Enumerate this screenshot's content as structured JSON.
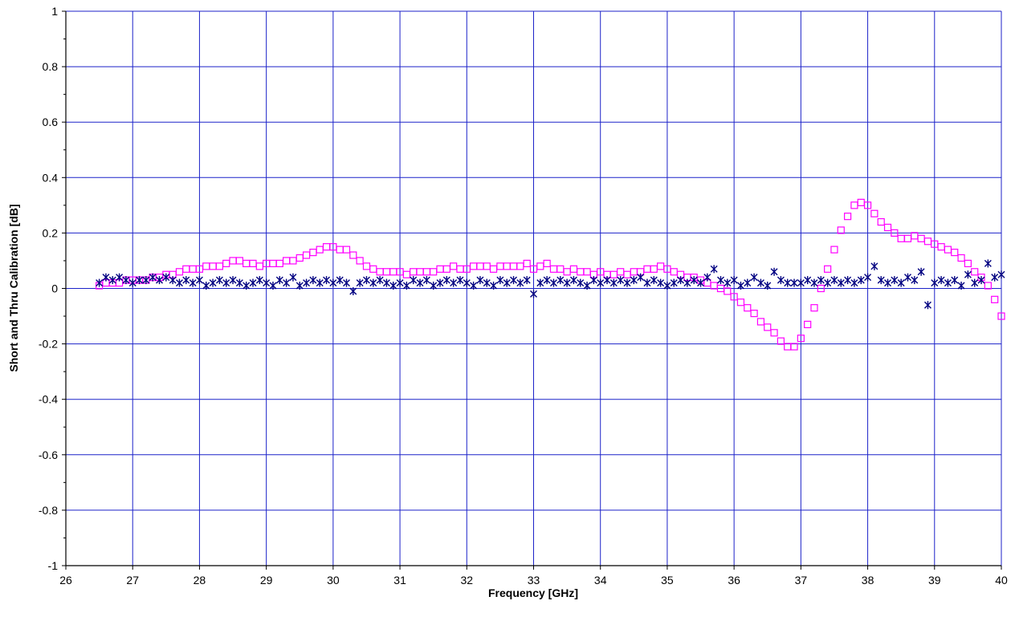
{
  "chart_data": {
    "type": "scatter",
    "title": "",
    "xlabel": "Frequency [GHz]",
    "ylabel": "Short and Thru Calibration [dB]",
    "xlim": [
      26,
      40
    ],
    "ylim": [
      -1,
      1
    ],
    "x_ticks": [
      26,
      27,
      28,
      29,
      30,
      31,
      32,
      33,
      34,
      35,
      36,
      37,
      38,
      39,
      40
    ],
    "x_tick_labels": [
      "26",
      "27",
      "28",
      "29",
      "30",
      "31",
      "32",
      "33",
      "34",
      "35",
      "36",
      "37",
      "38",
      "39",
      "40"
    ],
    "y_ticks": [
      -1,
      -0.8,
      -0.6,
      -0.4,
      -0.2,
      0,
      0.2,
      0.4,
      0.6,
      0.8,
      1
    ],
    "y_tick_labels": [
      "-1",
      "-0.8",
      "-0.6",
      "-0.4",
      "-0.2",
      "0",
      "0.2",
      "0.4",
      "0.6",
      "0.8",
      "1"
    ],
    "grid": true,
    "legend": "none",
    "series": [
      {
        "marker": "square",
        "color": "#ff00ff",
        "points": [
          [
            26.5,
            0.01
          ],
          [
            26.6,
            0.02
          ],
          [
            26.7,
            0.02
          ],
          [
            26.8,
            0.02
          ],
          [
            26.9,
            0.03
          ],
          [
            27.0,
            0.03
          ],
          [
            27.1,
            0.03
          ],
          [
            27.2,
            0.03
          ],
          [
            27.3,
            0.04
          ],
          [
            27.4,
            0.04
          ],
          [
            27.5,
            0.05
          ],
          [
            27.6,
            0.05
          ],
          [
            27.7,
            0.06
          ],
          [
            27.8,
            0.07
          ],
          [
            27.9,
            0.07
          ],
          [
            28.0,
            0.07
          ],
          [
            28.1,
            0.08
          ],
          [
            28.2,
            0.08
          ],
          [
            28.3,
            0.08
          ],
          [
            28.4,
            0.09
          ],
          [
            28.5,
            0.1
          ],
          [
            28.6,
            0.1
          ],
          [
            28.7,
            0.09
          ],
          [
            28.8,
            0.09
          ],
          [
            28.9,
            0.08
          ],
          [
            29.0,
            0.09
          ],
          [
            29.1,
            0.09
          ],
          [
            29.2,
            0.09
          ],
          [
            29.3,
            0.1
          ],
          [
            29.4,
            0.1
          ],
          [
            29.5,
            0.11
          ],
          [
            29.6,
            0.12
          ],
          [
            29.7,
            0.13
          ],
          [
            29.8,
            0.14
          ],
          [
            29.9,
            0.15
          ],
          [
            30.0,
            0.15
          ],
          [
            30.1,
            0.14
          ],
          [
            30.2,
            0.14
          ],
          [
            30.3,
            0.12
          ],
          [
            30.4,
            0.1
          ],
          [
            30.5,
            0.08
          ],
          [
            30.6,
            0.07
          ],
          [
            30.7,
            0.06
          ],
          [
            30.8,
            0.06
          ],
          [
            30.9,
            0.06
          ],
          [
            31.0,
            0.06
          ],
          [
            31.1,
            0.05
          ],
          [
            31.2,
            0.06
          ],
          [
            31.3,
            0.06
          ],
          [
            31.4,
            0.06
          ],
          [
            31.5,
            0.06
          ],
          [
            31.6,
            0.07
          ],
          [
            31.7,
            0.07
          ],
          [
            31.8,
            0.08
          ],
          [
            31.9,
            0.07
          ],
          [
            32.0,
            0.07
          ],
          [
            32.1,
            0.08
          ],
          [
            32.2,
            0.08
          ],
          [
            32.3,
            0.08
          ],
          [
            32.4,
            0.07
          ],
          [
            32.5,
            0.08
          ],
          [
            32.6,
            0.08
          ],
          [
            32.7,
            0.08
          ],
          [
            32.8,
            0.08
          ],
          [
            32.9,
            0.09
          ],
          [
            33.0,
            0.07
          ],
          [
            33.1,
            0.08
          ],
          [
            33.2,
            0.09
          ],
          [
            33.3,
            0.07
          ],
          [
            33.4,
            0.07
          ],
          [
            33.5,
            0.06
          ],
          [
            33.6,
            0.07
          ],
          [
            33.7,
            0.06
          ],
          [
            33.8,
            0.06
          ],
          [
            33.9,
            0.05
          ],
          [
            34.0,
            0.06
          ],
          [
            34.1,
            0.05
          ],
          [
            34.2,
            0.05
          ],
          [
            34.3,
            0.06
          ],
          [
            34.4,
            0.05
          ],
          [
            34.5,
            0.06
          ],
          [
            34.6,
            0.06
          ],
          [
            34.7,
            0.07
          ],
          [
            34.8,
            0.07
          ],
          [
            34.9,
            0.08
          ],
          [
            35.0,
            0.07
          ],
          [
            35.1,
            0.06
          ],
          [
            35.2,
            0.05
          ],
          [
            35.3,
            0.04
          ],
          [
            35.4,
            0.04
          ],
          [
            35.5,
            0.03
          ],
          [
            35.6,
            0.02
          ],
          [
            35.7,
            0.01
          ],
          [
            35.8,
            0.0
          ],
          [
            35.9,
            -0.01
          ],
          [
            36.0,
            -0.03
          ],
          [
            36.1,
            -0.05
          ],
          [
            36.2,
            -0.07
          ],
          [
            36.3,
            -0.09
          ],
          [
            36.4,
            -0.12
          ],
          [
            36.5,
            -0.14
          ],
          [
            36.6,
            -0.16
          ],
          [
            36.7,
            -0.19
          ],
          [
            36.8,
            -0.21
          ],
          [
            36.9,
            -0.21
          ],
          [
            37.0,
            -0.18
          ],
          [
            37.1,
            -0.13
          ],
          [
            37.2,
            -0.07
          ],
          [
            37.3,
            0.0
          ],
          [
            37.4,
            0.07
          ],
          [
            37.5,
            0.14
          ],
          [
            37.6,
            0.21
          ],
          [
            37.7,
            0.26
          ],
          [
            37.8,
            0.3
          ],
          [
            37.9,
            0.31
          ],
          [
            38.0,
            0.3
          ],
          [
            38.1,
            0.27
          ],
          [
            38.2,
            0.24
          ],
          [
            38.3,
            0.22
          ],
          [
            38.4,
            0.2
          ],
          [
            38.5,
            0.18
          ],
          [
            38.6,
            0.18
          ],
          [
            38.7,
            0.19
          ],
          [
            38.8,
            0.18
          ],
          [
            38.9,
            0.17
          ],
          [
            39.0,
            0.16
          ],
          [
            39.1,
            0.15
          ],
          [
            39.2,
            0.14
          ],
          [
            39.3,
            0.13
          ],
          [
            39.4,
            0.11
          ],
          [
            39.5,
            0.09
          ],
          [
            39.6,
            0.06
          ],
          [
            39.7,
            0.04
          ],
          [
            39.8,
            0.01
          ],
          [
            39.9,
            -0.04
          ],
          [
            40.0,
            -0.1
          ]
        ]
      },
      {
        "marker": "star",
        "color": "#000080",
        "points": [
          [
            26.5,
            0.02
          ],
          [
            26.6,
            0.04
          ],
          [
            26.7,
            0.03
          ],
          [
            26.8,
            0.04
          ],
          [
            26.9,
            0.03
          ],
          [
            27.0,
            0.02
          ],
          [
            27.1,
            0.03
          ],
          [
            27.2,
            0.03
          ],
          [
            27.3,
            0.04
          ],
          [
            27.4,
            0.03
          ],
          [
            27.5,
            0.04
          ],
          [
            27.6,
            0.03
          ],
          [
            27.7,
            0.02
          ],
          [
            27.8,
            0.03
          ],
          [
            27.9,
            0.02
          ],
          [
            28.0,
            0.03
          ],
          [
            28.1,
            0.01
          ],
          [
            28.2,
            0.02
          ],
          [
            28.3,
            0.03
          ],
          [
            28.4,
            0.02
          ],
          [
            28.5,
            0.03
          ],
          [
            28.6,
            0.02
          ],
          [
            28.7,
            0.01
          ],
          [
            28.8,
            0.02
          ],
          [
            28.9,
            0.03
          ],
          [
            29.0,
            0.02
          ],
          [
            29.1,
            0.01
          ],
          [
            29.2,
            0.03
          ],
          [
            29.3,
            0.02
          ],
          [
            29.4,
            0.04
          ],
          [
            29.5,
            0.01
          ],
          [
            29.6,
            0.02
          ],
          [
            29.7,
            0.03
          ],
          [
            29.8,
            0.02
          ],
          [
            29.9,
            0.03
          ],
          [
            30.0,
            0.02
          ],
          [
            30.1,
            0.03
          ],
          [
            30.2,
            0.02
          ],
          [
            30.3,
            -0.01
          ],
          [
            30.4,
            0.02
          ],
          [
            30.5,
            0.03
          ],
          [
            30.6,
            0.02
          ],
          [
            30.7,
            0.03
          ],
          [
            30.8,
            0.02
          ],
          [
            30.9,
            0.01
          ],
          [
            31.0,
            0.02
          ],
          [
            31.1,
            0.01
          ],
          [
            31.2,
            0.03
          ],
          [
            31.3,
            0.02
          ],
          [
            31.4,
            0.03
          ],
          [
            31.5,
            0.01
          ],
          [
            31.6,
            0.02
          ],
          [
            31.7,
            0.03
          ],
          [
            31.8,
            0.02
          ],
          [
            31.9,
            0.03
          ],
          [
            32.0,
            0.02
          ],
          [
            32.1,
            0.01
          ],
          [
            32.2,
            0.03
          ],
          [
            32.3,
            0.02
          ],
          [
            32.4,
            0.01
          ],
          [
            32.5,
            0.03
          ],
          [
            32.6,
            0.02
          ],
          [
            32.7,
            0.03
          ],
          [
            32.8,
            0.02
          ],
          [
            32.9,
            0.03
          ],
          [
            33.0,
            -0.02
          ],
          [
            33.1,
            0.02
          ],
          [
            33.2,
            0.03
          ],
          [
            33.3,
            0.02
          ],
          [
            33.4,
            0.03
          ],
          [
            33.5,
            0.02
          ],
          [
            33.6,
            0.03
          ],
          [
            33.7,
            0.02
          ],
          [
            33.8,
            0.01
          ],
          [
            33.9,
            0.03
          ],
          [
            34.0,
            0.02
          ],
          [
            34.1,
            0.03
          ],
          [
            34.2,
            0.02
          ],
          [
            34.3,
            0.03
          ],
          [
            34.4,
            0.02
          ],
          [
            34.5,
            0.03
          ],
          [
            34.6,
            0.04
          ],
          [
            34.7,
            0.02
          ],
          [
            34.8,
            0.03
          ],
          [
            34.9,
            0.02
          ],
          [
            35.0,
            0.01
          ],
          [
            35.1,
            0.02
          ],
          [
            35.2,
            0.03
          ],
          [
            35.3,
            0.02
          ],
          [
            35.4,
            0.03
          ],
          [
            35.5,
            0.02
          ],
          [
            35.6,
            0.04
          ],
          [
            35.7,
            0.07
          ],
          [
            35.8,
            0.03
          ],
          [
            35.9,
            0.02
          ],
          [
            36.0,
            0.03
          ],
          [
            36.1,
            0.01
          ],
          [
            36.2,
            0.02
          ],
          [
            36.3,
            0.04
          ],
          [
            36.4,
            0.02
          ],
          [
            36.5,
            0.01
          ],
          [
            36.6,
            0.06
          ],
          [
            36.7,
            0.03
          ],
          [
            36.8,
            0.02
          ],
          [
            36.9,
            0.02
          ],
          [
            37.0,
            0.02
          ],
          [
            37.1,
            0.03
          ],
          [
            37.2,
            0.02
          ],
          [
            37.3,
            0.03
          ],
          [
            37.4,
            0.02
          ],
          [
            37.5,
            0.03
          ],
          [
            37.6,
            0.02
          ],
          [
            37.7,
            0.03
          ],
          [
            37.8,
            0.02
          ],
          [
            37.9,
            0.03
          ],
          [
            38.0,
            0.04
          ],
          [
            38.1,
            0.08
          ],
          [
            38.2,
            0.03
          ],
          [
            38.3,
            0.02
          ],
          [
            38.4,
            0.03
          ],
          [
            38.5,
            0.02
          ],
          [
            38.6,
            0.04
          ],
          [
            38.7,
            0.03
          ],
          [
            38.8,
            0.06
          ],
          [
            38.9,
            -0.06
          ],
          [
            39.0,
            0.02
          ],
          [
            39.1,
            0.03
          ],
          [
            39.2,
            0.02
          ],
          [
            39.3,
            0.03
          ],
          [
            39.4,
            0.01
          ],
          [
            39.5,
            0.05
          ],
          [
            39.6,
            0.02
          ],
          [
            39.7,
            0.03
          ],
          [
            39.8,
            0.09
          ],
          [
            39.9,
            0.04
          ],
          [
            40.0,
            0.05
          ]
        ]
      }
    ]
  }
}
